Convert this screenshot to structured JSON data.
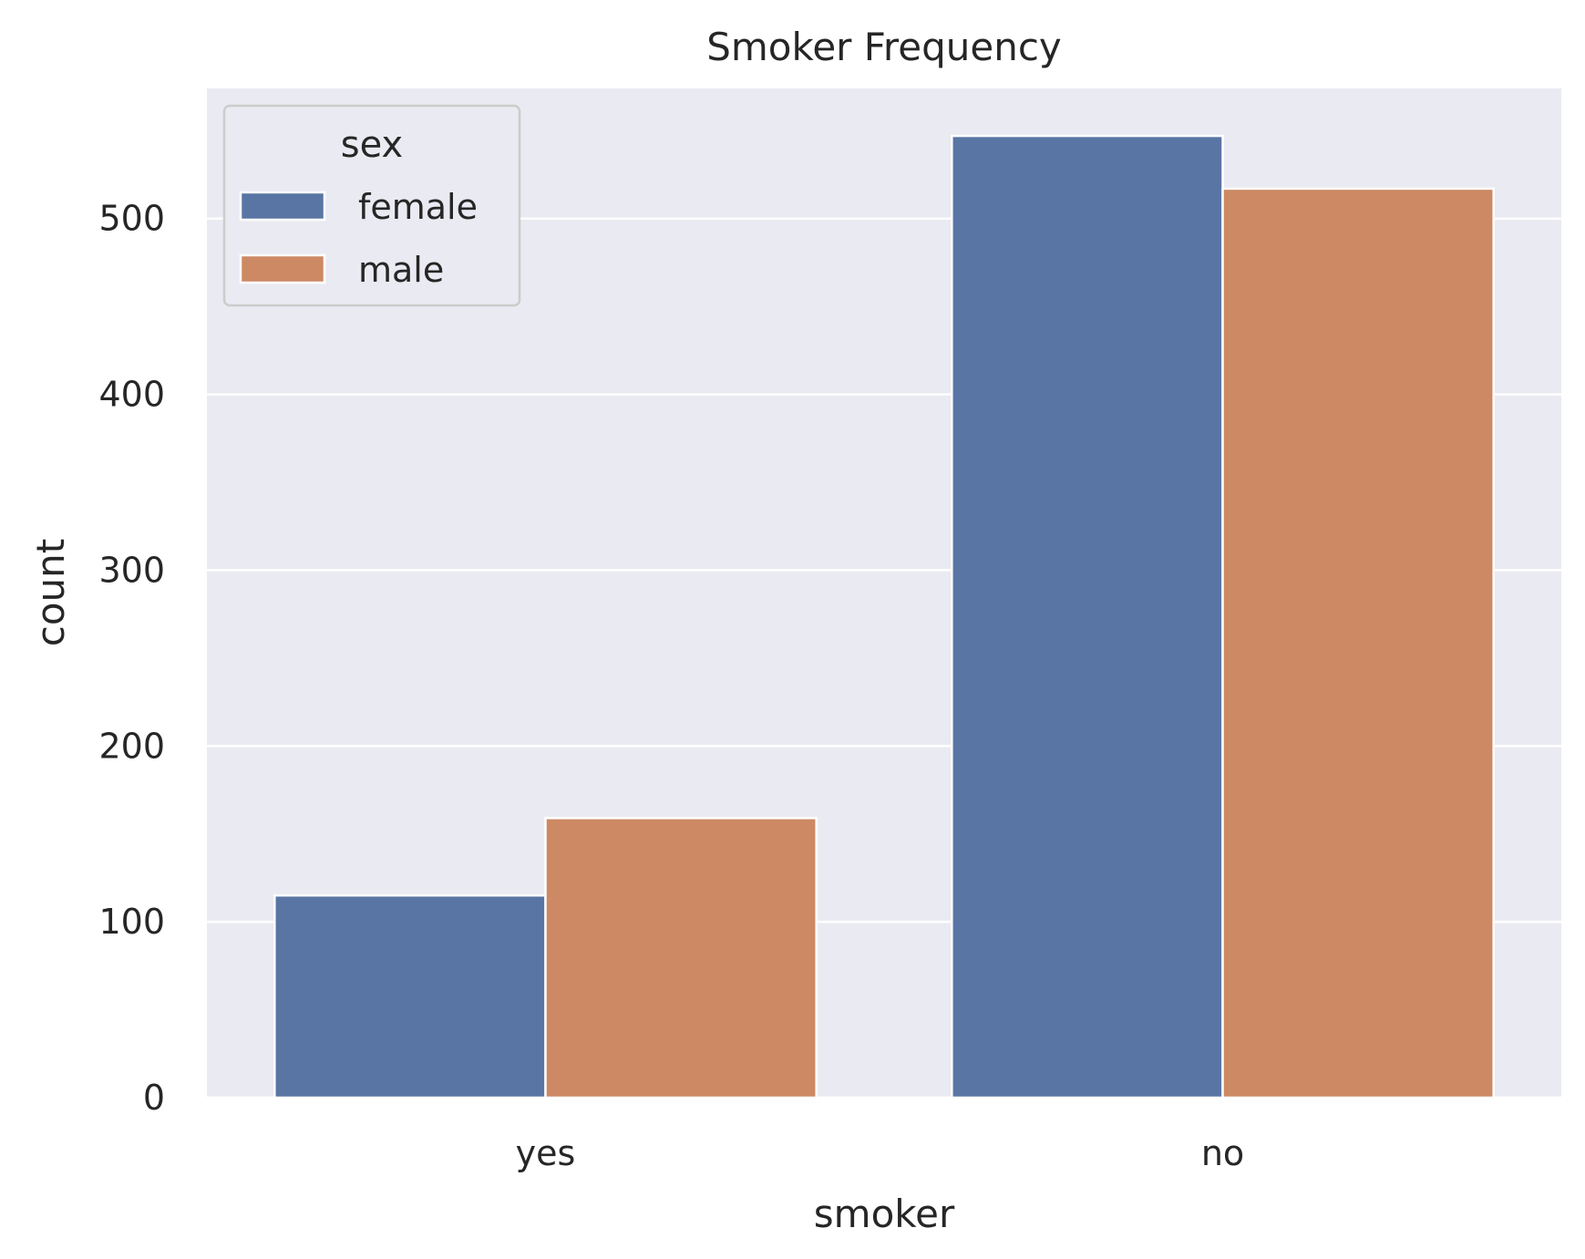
{
  "chart_data": {
    "type": "bar",
    "title": "Smoker Frequency",
    "xlabel": "smoker",
    "ylabel": "count",
    "categories": [
      "yes",
      "no"
    ],
    "series": [
      {
        "name": "female",
        "values": [
          115,
          547
        ],
        "color": "#5975a4"
      },
      {
        "name": "male",
        "values": [
          159,
          517
        ],
        "color": "#cc8963"
      }
    ],
    "ylim": [
      0,
      574
    ],
    "yticks": [
      0,
      100,
      200,
      300,
      400,
      500
    ],
    "grid": true,
    "legend": {
      "title": "sex",
      "placement": "top-left"
    },
    "background_color": "#eaeaf2",
    "grid_color": "#ffffff"
  }
}
